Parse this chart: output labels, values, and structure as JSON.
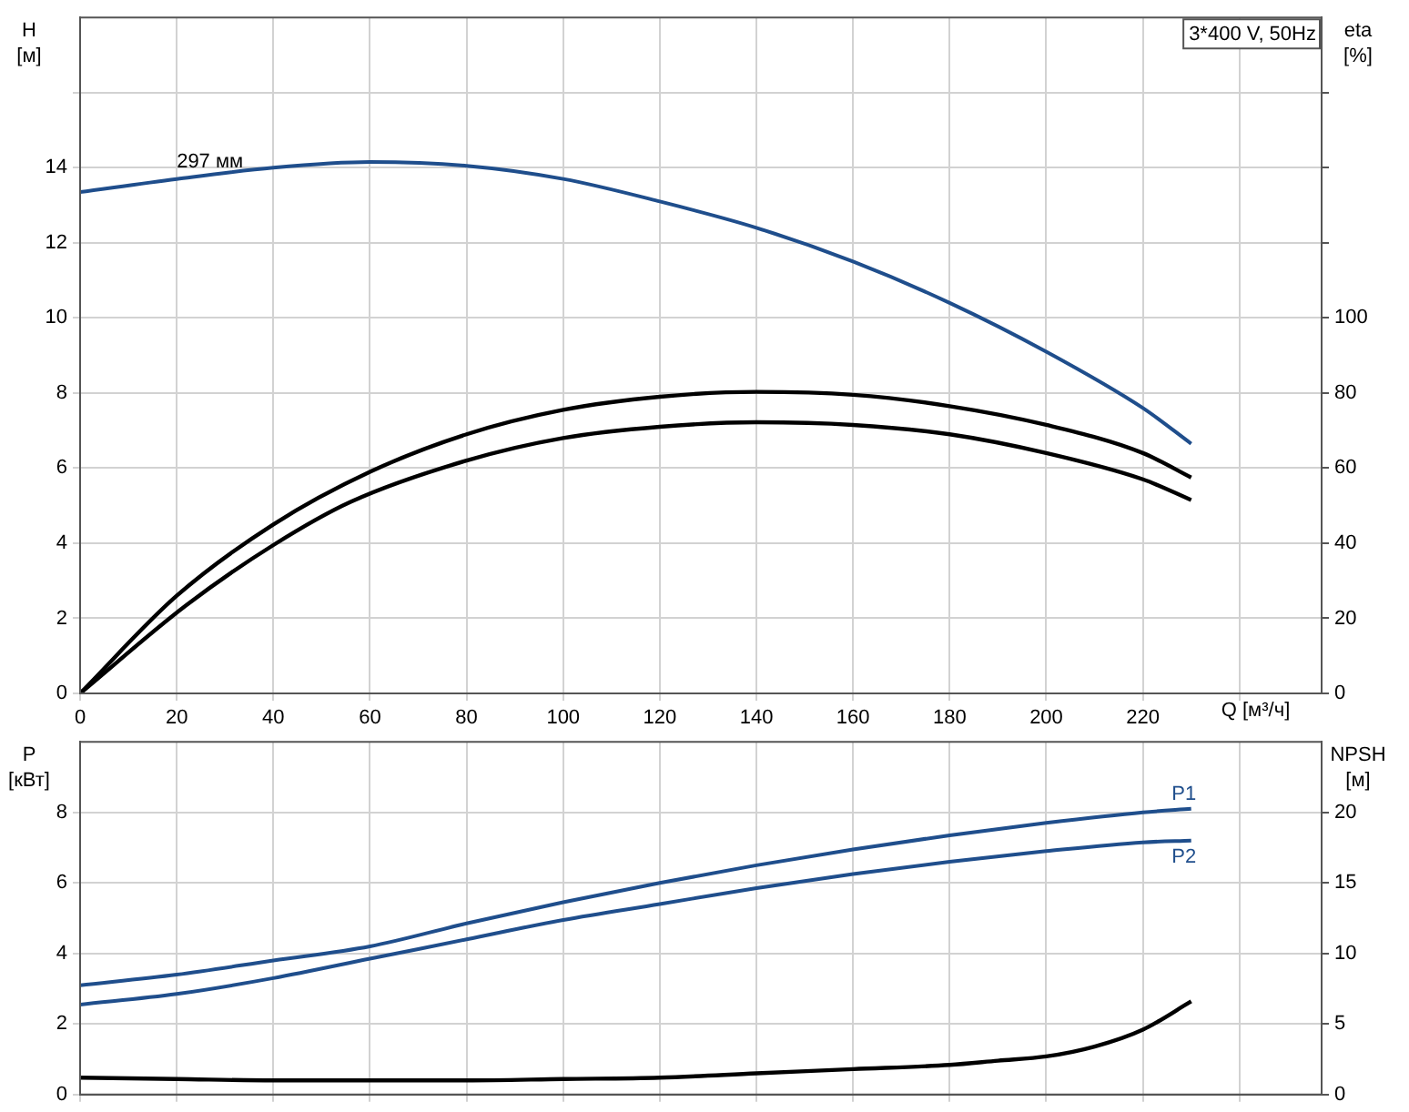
{
  "chart_data": [
    {
      "type": "line",
      "title": "3*400 V, 50Hz",
      "ylabel": "H [м]",
      "y2label": "eta [%]",
      "xlabel": "Q [м³/ч]",
      "xlim": [
        0,
        257
      ],
      "xticks": [
        0,
        20,
        40,
        60,
        80,
        100,
        120,
        140,
        160,
        180,
        200,
        220,
        {
          "value": 240,
          "label": null
        }
      ],
      "ylim": [
        0,
        18
      ],
      "yticks": [
        0,
        2,
        4,
        6,
        8,
        10,
        12,
        14,
        {
          "value": 16,
          "label": null
        }
      ],
      "y2lim": [
        0,
        180
      ],
      "y2ticks": [
        0,
        20,
        40,
        60,
        80,
        100,
        {
          "value": 120,
          "label": null
        },
        {
          "value": 140,
          "label": null
        },
        {
          "value": 160,
          "label": null
        }
      ],
      "grid": true,
      "legend": false,
      "marker": "none",
      "line_style": "solid",
      "annotations": [
        {
          "text": "297 мм",
          "x": 20,
          "y": 13.7
        }
      ],
      "series": [
        {
          "color": "#1f4e8c",
          "x": [
            0,
            20,
            40,
            60,
            80,
            100,
            120,
            140,
            160,
            180,
            200,
            220,
            230
          ],
          "values": [
            13.35,
            13.7,
            14.0,
            14.15,
            14.05,
            13.7,
            13.1,
            12.4,
            11.5,
            10.4,
            9.1,
            7.6,
            6.65
          ]
        },
        {
          "color": "#000000",
          "axis": "y2",
          "x": [
            0,
            20,
            40,
            60,
            80,
            100,
            120,
            140,
            160,
            180,
            200,
            220,
            230
          ],
          "values": [
            0,
            26,
            45,
            59,
            69,
            75.5,
            79,
            80.3,
            79.5,
            76.5,
            71.5,
            64,
            57.5
          ]
        },
        {
          "color": "#000000",
          "axis": "y2",
          "x": [
            0,
            22,
            40,
            56,
            80,
            100,
            120,
            140,
            160,
            180,
            200,
            220,
            230
          ],
          "values": [
            0,
            23.5,
            39.5,
            51,
            62,
            68,
            71,
            72.2,
            71.5,
            69,
            64,
            57,
            51.5
          ]
        }
      ]
    },
    {
      "type": "line",
      "ylabel": "P [кВт]",
      "y2label": "NPSH [м]",
      "xlim": [
        0,
        257
      ],
      "xticks": [
        0,
        20,
        40,
        60,
        80,
        100,
        120,
        140,
        160,
        180,
        200,
        220,
        240
      ],
      "tick_labels": "y",
      "ylim": [
        0,
        10
      ],
      "yticks": [
        0,
        2,
        4,
        6,
        8
      ],
      "y2lim": [
        0,
        25
      ],
      "y2ticks": [
        0,
        5,
        10,
        15,
        20
      ],
      "grid": true,
      "legend": false,
      "marker": "none",
      "line_style": "solid",
      "series": [
        {
          "name": "P1",
          "color": "#1f4e8c",
          "x": [
            0,
            20,
            40,
            60,
            80,
            100,
            120,
            140,
            160,
            180,
            200,
            220,
            230
          ],
          "values": [
            3.1,
            3.4,
            3.8,
            4.2,
            4.85,
            5.45,
            6.0,
            6.5,
            6.95,
            7.35,
            7.7,
            8.0,
            8.1
          ]
        },
        {
          "name": "P2",
          "color": "#1f4e8c",
          "x": [
            0,
            20,
            40,
            60,
            80,
            100,
            120,
            140,
            160,
            180,
            200,
            220,
            230
          ],
          "values": [
            2.55,
            2.85,
            3.3,
            3.85,
            4.4,
            4.95,
            5.4,
            5.85,
            6.25,
            6.6,
            6.9,
            7.15,
            7.2
          ]
        },
        {
          "color": "#000000",
          "axis": "y2",
          "x": [
            0,
            20,
            40,
            60,
            80,
            100,
            120,
            140,
            160,
            180,
            190,
            200,
            210,
            220,
            230
          ],
          "values": [
            1.2,
            1.1,
            1.0,
            1.0,
            1.0,
            1.1,
            1.2,
            1.5,
            1.8,
            2.1,
            2.4,
            2.7,
            3.4,
            4.6,
            6.6
          ]
        }
      ]
    }
  ]
}
